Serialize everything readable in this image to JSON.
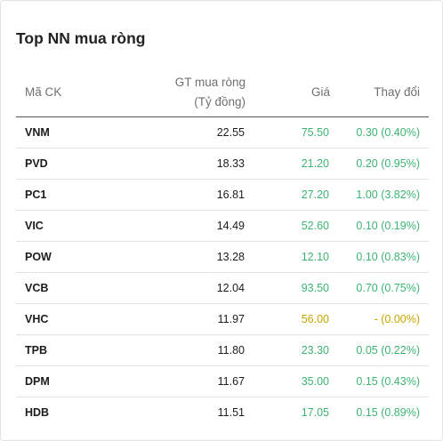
{
  "widget": {
    "title": "Top NN mua ròng",
    "columns": {
      "symbol": "Mã CK",
      "value_line1": "GT mua ròng",
      "value_line2": "(Tỷ đồng)",
      "price": "Giá",
      "change": "Thay đổi"
    },
    "rows": [
      {
        "symbol": "VNM",
        "value": "22.55",
        "price": "75.50",
        "change": "0.30 (0.40%)",
        "status": "up"
      },
      {
        "symbol": "PVD",
        "value": "18.33",
        "price": "21.20",
        "change": "0.20 (0.95%)",
        "status": "up"
      },
      {
        "symbol": "PC1",
        "value": "16.81",
        "price": "27.20",
        "change": "1.00 (3.82%)",
        "status": "up"
      },
      {
        "symbol": "VIC",
        "value": "14.49",
        "price": "52.60",
        "change": "0.10 (0.19%)",
        "status": "up"
      },
      {
        "symbol": "POW",
        "value": "13.28",
        "price": "12.10",
        "change": "0.10 (0.83%)",
        "status": "up"
      },
      {
        "symbol": "VCB",
        "value": "12.04",
        "price": "93.50",
        "change": "0.70 (0.75%)",
        "status": "up"
      },
      {
        "symbol": "VHC",
        "value": "11.97",
        "price": "56.00",
        "change": "- (0.00%)",
        "status": "ref"
      },
      {
        "symbol": "TPB",
        "value": "11.80",
        "price": "23.30",
        "change": "0.05 (0.22%)",
        "status": "up"
      },
      {
        "symbol": "DPM",
        "value": "11.67",
        "price": "35.00",
        "change": "0.15 (0.43%)",
        "status": "up"
      },
      {
        "symbol": "HDB",
        "value": "11.51",
        "price": "17.05",
        "change": "0.15 (0.89%)",
        "status": "up"
      }
    ]
  },
  "colors": {
    "up": "#3cb371",
    "reference": "#c9a400",
    "header_text": "#6f6f6f"
  }
}
